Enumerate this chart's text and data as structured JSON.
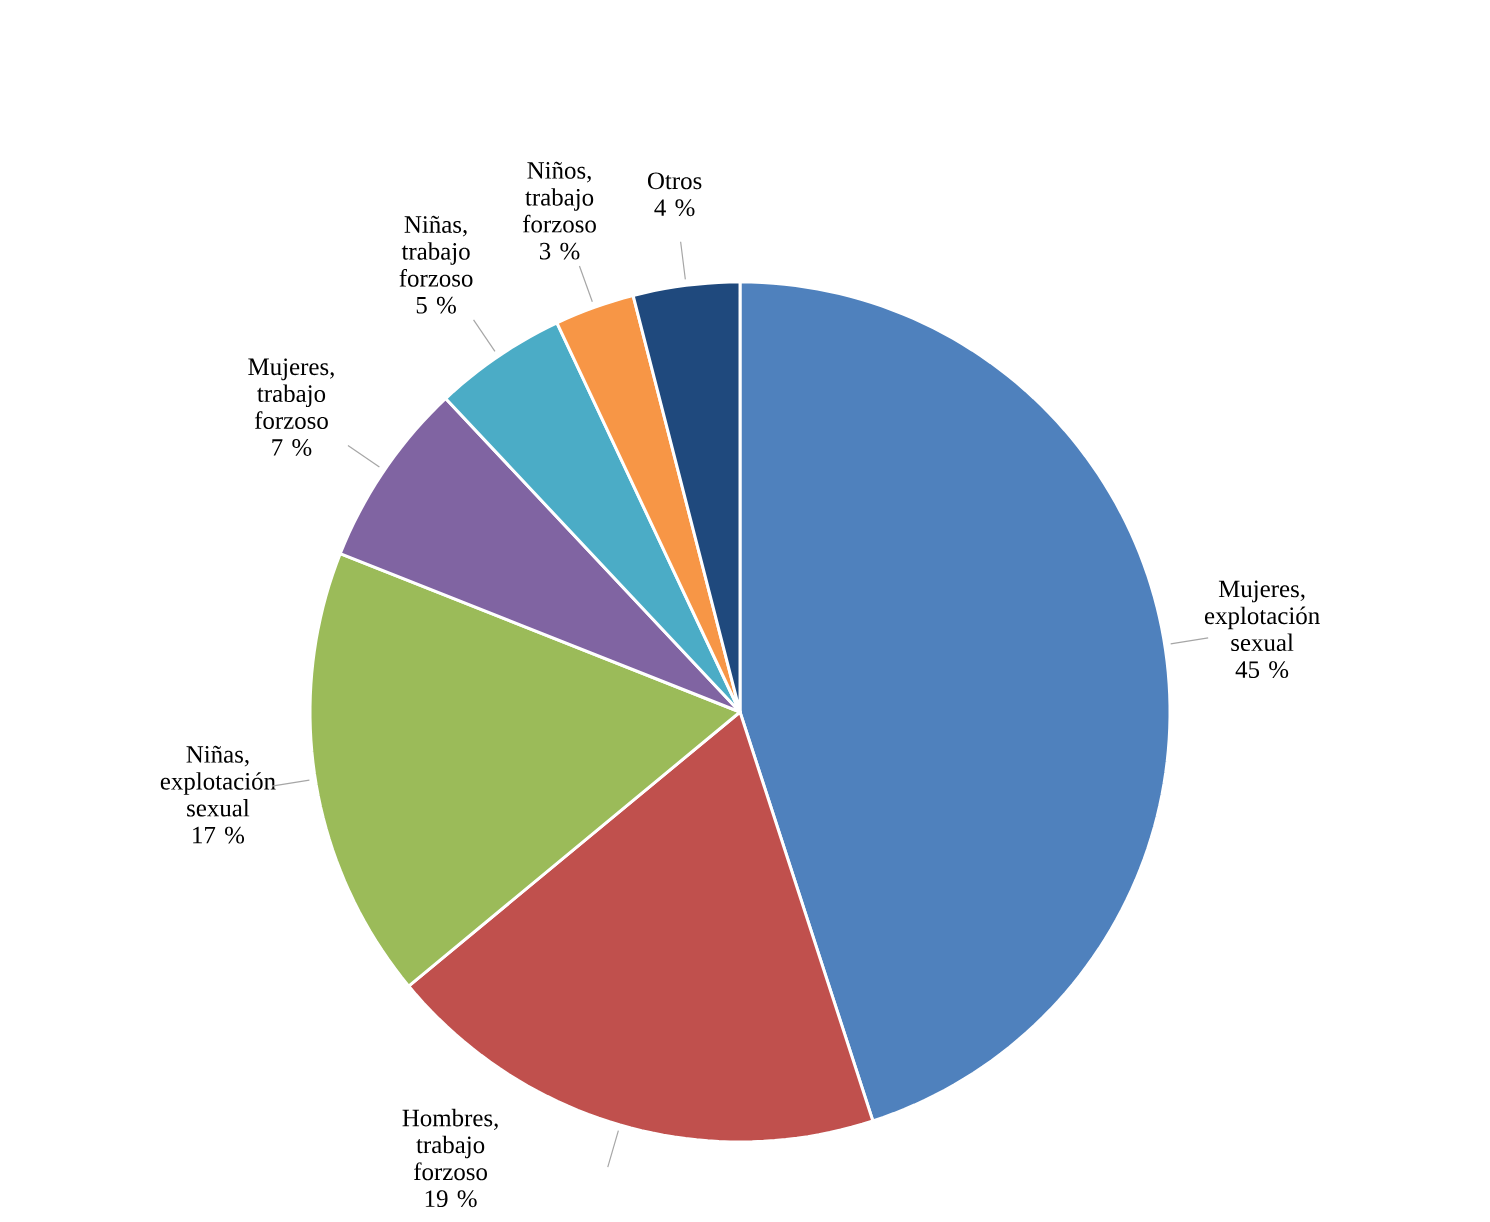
{
  "chart_data": {
    "type": "pie",
    "categories": [
      "Mujeres, explotación sexual",
      "Hombres, trabajo forzoso",
      "Niñas, explotación sexual",
      "Mujeres, trabajo forzoso",
      "Niñas, trabajo forzoso",
      "Niños, trabajo forzoso",
      "Otros"
    ],
    "values": [
      45,
      19,
      17,
      7,
      5,
      3,
      4
    ],
    "colors": [
      "#4f81bd",
      "#c0504d",
      "#9bbb59",
      "#8064a2",
      "#4bacc6",
      "#f79646",
      "#1f497d"
    ],
    "value_labels": [
      "45 %",
      "19 %",
      "17 %",
      "7 %",
      "5 %",
      "3 %",
      "4 %"
    ]
  }
}
